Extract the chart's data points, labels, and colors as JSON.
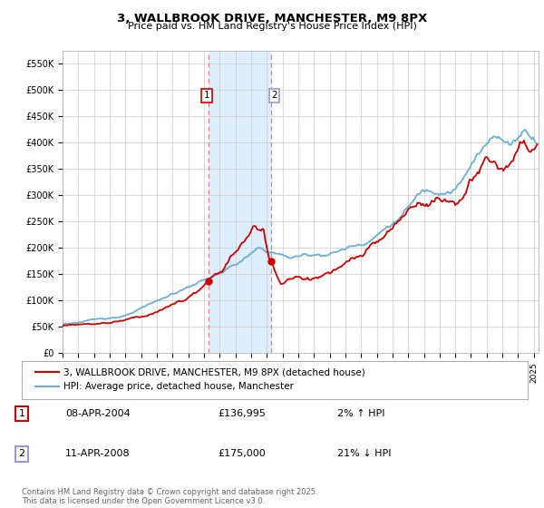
{
  "title": "3, WALLBROOK DRIVE, MANCHESTER, M9 8PX",
  "subtitle": "Price paid vs. HM Land Registry's House Price Index (HPI)",
  "ylim": [
    0,
    575000
  ],
  "xlim_start": 1995.0,
  "xlim_end": 2025.3,
  "legend_line1": "3, WALLBROOK DRIVE, MANCHESTER, M9 8PX (detached house)",
  "legend_line2": "HPI: Average price, detached house, Manchester",
  "marker1_date": 2004.27,
  "marker1_price": 136995,
  "marker2_date": 2008.28,
  "marker2_price": 175000,
  "hpi_color": "#6baed6",
  "price_color": "#cc0000",
  "vline_color": "#e88080",
  "shade_color": "#ddeeff",
  "copyright_text": "Contains HM Land Registry data © Crown copyright and database right 2025.\nThis data is licensed under the Open Government Licence v3.0.",
  "background_color": "#ffffff",
  "grid_color": "#cccccc",
  "marker2_border": "#9999cc"
}
